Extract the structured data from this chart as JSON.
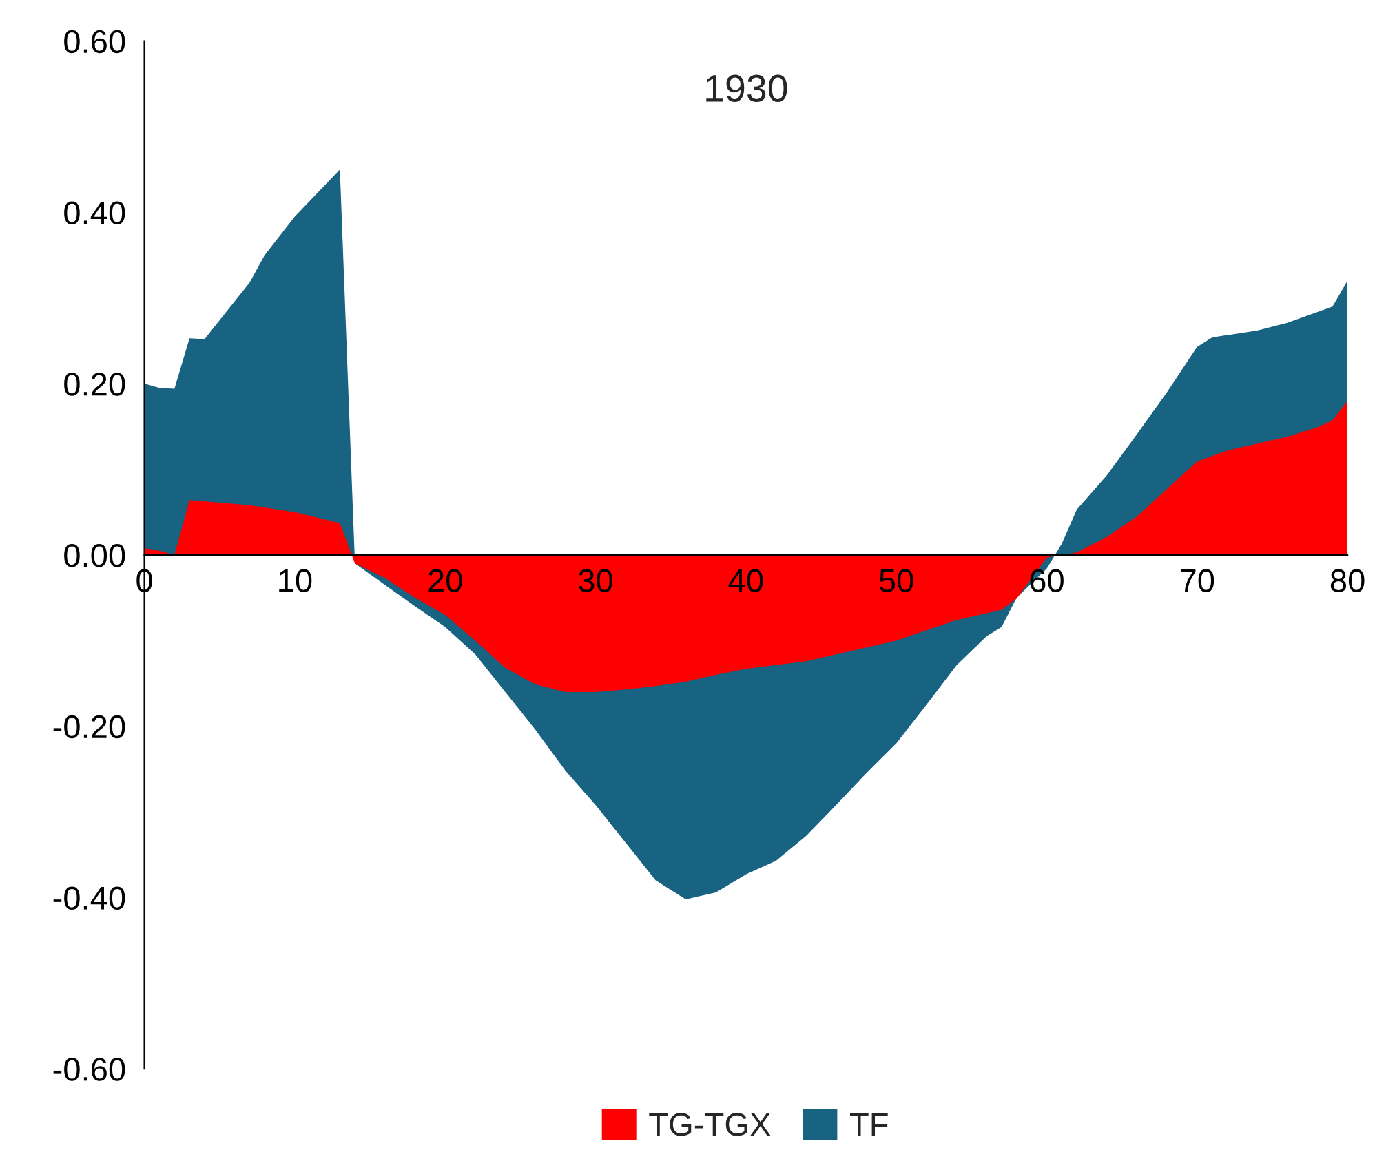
{
  "chart_data": {
    "type": "area",
    "title": "1930",
    "xlim": [
      0,
      80
    ],
    "xticks": [
      0,
      10,
      20,
      30,
      40,
      50,
      60,
      70,
      80
    ],
    "ylim": [
      -0.6,
      0.6
    ],
    "yticks": [
      {
        "value": -0.6,
        "label": "-0.60"
      },
      {
        "value": -0.4,
        "label": "-0.40"
      },
      {
        "value": -0.2,
        "label": "-0.20"
      },
      {
        "value": 0,
        "label": "0.00"
      },
      {
        "value": 0.2,
        "label": "0.20"
      },
      {
        "value": 0.4,
        "label": "0.40"
      },
      {
        "value": 0.6,
        "label": "0.60"
      }
    ],
    "grid": false,
    "legend": "bottom",
    "series": [
      {
        "name": "TG-TGX",
        "color": "#ff0000",
        "x": [
          0,
          1,
          2,
          3,
          5,
          7,
          10,
          13,
          14,
          16,
          18,
          20,
          22,
          24,
          26,
          28,
          30,
          32,
          34,
          36,
          38,
          40,
          44,
          48,
          50,
          52,
          54,
          57,
          58,
          60,
          61,
          62,
          64,
          66,
          68,
          70,
          72,
          74,
          76,
          78,
          79,
          80
        ],
        "values": [
          0.008,
          0.005,
          0.0,
          0.064,
          0.061,
          0.058,
          0.05,
          0.037,
          -0.01,
          -0.027,
          -0.05,
          -0.07,
          -0.1,
          -0.132,
          -0.151,
          -0.16,
          -0.16,
          -0.157,
          -0.153,
          -0.148,
          -0.14,
          -0.133,
          -0.124,
          -0.108,
          -0.1,
          -0.088,
          -0.076,
          -0.064,
          -0.051,
          -0.003,
          0.0,
          0.003,
          0.021,
          0.045,
          0.077,
          0.109,
          0.122,
          0.13,
          0.138,
          0.149,
          0.157,
          0.18
        ]
      },
      {
        "name": "TF",
        "color": "#186282",
        "x": [
          0,
          1,
          2,
          3,
          4,
          7,
          8,
          10,
          13,
          14,
          16,
          18,
          20,
          22,
          24,
          26,
          28,
          30,
          32,
          34,
          36,
          38,
          40,
          42,
          44,
          46,
          48,
          50,
          52,
          54,
          56,
          57,
          58,
          60,
          61,
          62,
          64,
          66,
          68,
          70,
          71,
          74,
          76,
          79,
          80
        ],
        "values": [
          0.2,
          0.195,
          0.194,
          0.253,
          0.252,
          0.318,
          0.35,
          0.395,
          0.45,
          -0.01,
          -0.035,
          -0.06,
          -0.084,
          -0.116,
          -0.16,
          -0.204,
          -0.252,
          -0.292,
          -0.336,
          -0.38,
          -0.402,
          -0.394,
          -0.373,
          -0.357,
          -0.328,
          -0.292,
          -0.255,
          -0.22,
          -0.175,
          -0.129,
          -0.095,
          -0.084,
          -0.05,
          -0.016,
          0.013,
          0.053,
          0.093,
          0.141,
          0.19,
          0.243,
          0.254,
          0.262,
          0.271,
          0.29,
          0.32
        ]
      }
    ]
  }
}
